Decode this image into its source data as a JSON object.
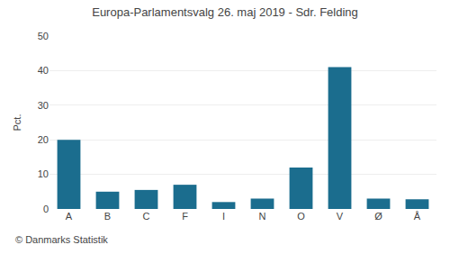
{
  "chart_data": {
    "type": "bar",
    "title": "Europa-Parlamentsvalg 26. maj 2019 - Sdr. Felding",
    "categories": [
      "A",
      "B",
      "C",
      "F",
      "I",
      "N",
      "O",
      "V",
      "Ø",
      "Å"
    ],
    "values": [
      20,
      5,
      5.5,
      7,
      2,
      3,
      12,
      41,
      3,
      2.8
    ],
    "color": "#1b6d8e",
    "ylabel": "Pct.",
    "annotations": [
      "© Danmarks Statistik"
    ],
    "ylim": [
      0,
      50
    ],
    "yticks": [
      0,
      10,
      20,
      30,
      40,
      50
    ],
    "grid": true
  }
}
